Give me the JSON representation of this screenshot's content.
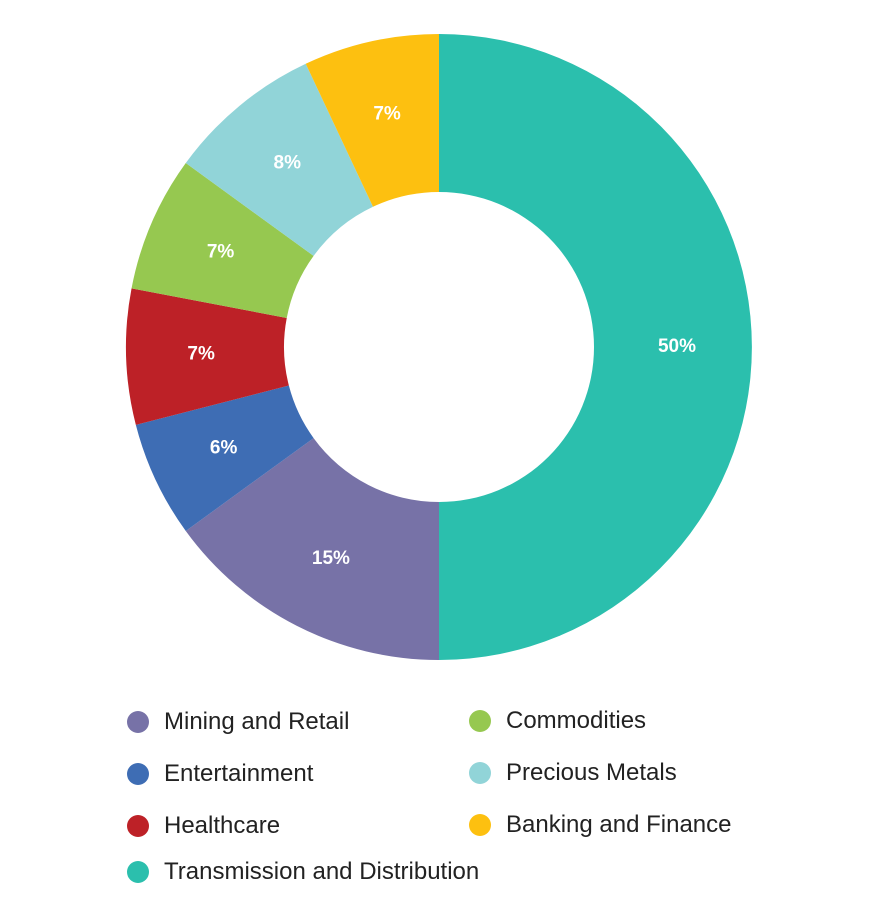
{
  "chart_data": {
    "type": "pie",
    "variant": "donut",
    "title": "",
    "legend_position": "bottom",
    "slices": [
      {
        "name": "Transmission and Distribution",
        "value": 50,
        "label": "50%",
        "color": "#2bbfad"
      },
      {
        "name": "Mining and Retail",
        "value": 15,
        "label": "15%",
        "color": "#7772a7"
      },
      {
        "name": "Entertainment",
        "value": 6,
        "label": "6%",
        "color": "#3e6db4"
      },
      {
        "name": "Healthcare",
        "value": 7,
        "label": "7%",
        "color": "#bd2127"
      },
      {
        "name": "Commodities",
        "value": 7,
        "label": "7%",
        "color": "#96c850"
      },
      {
        "name": "Precious Metals",
        "value": 8,
        "label": "8%",
        "color": "#91d4d8"
      },
      {
        "name": "Banking and Finance",
        "value": 7,
        "label": "7%",
        "color": "#fdc010"
      }
    ]
  },
  "legend": {
    "items": [
      {
        "label": "Mining and Retail",
        "color": "#7772a7"
      },
      {
        "label": "Entertainment",
        "color": "#3e6db4"
      },
      {
        "label": "Healthcare",
        "color": "#bd2127"
      },
      {
        "label": "Transmission and Distribution",
        "color": "#2bbfad"
      },
      {
        "label": "Commodities",
        "color": "#96c850"
      },
      {
        "label": "Precious Metals",
        "color": "#91d4d8"
      },
      {
        "label": "Banking and Finance",
        "color": "#fdc010"
      }
    ]
  }
}
